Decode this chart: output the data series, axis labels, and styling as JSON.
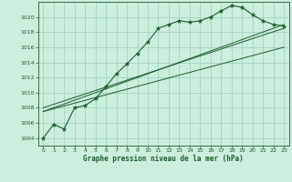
{
  "bg_color": "#cceedd",
  "grid_color": "#99ccbb",
  "line_color": "#1a5c2a",
  "title": "Graphe pression niveau de la mer (hPa)",
  "xlim": [
    -0.5,
    23.5
  ],
  "ylim": [
    1003.0,
    1022.0
  ],
  "yticks": [
    1004,
    1006,
    1008,
    1010,
    1012,
    1014,
    1016,
    1018,
    1020
  ],
  "xticks": [
    0,
    1,
    2,
    3,
    4,
    5,
    6,
    7,
    8,
    9,
    10,
    11,
    12,
    13,
    14,
    15,
    16,
    17,
    18,
    19,
    20,
    21,
    22,
    23
  ],
  "main_x": [
    0,
    1,
    2,
    3,
    4,
    5,
    6,
    7,
    8,
    9,
    10,
    11,
    12,
    13,
    14,
    15,
    16,
    17,
    18,
    19,
    20,
    21,
    22,
    23
  ],
  "main_y": [
    1004.0,
    1005.8,
    1005.2,
    1008.0,
    1008.3,
    1009.2,
    1010.8,
    1012.5,
    1013.8,
    1015.2,
    1016.7,
    1018.5,
    1019.0,
    1019.5,
    1019.3,
    1019.5,
    1020.0,
    1020.8,
    1021.5,
    1021.3,
    1020.3,
    1019.5,
    1019.0,
    1018.8
  ],
  "line1_x": [
    0,
    23
  ],
  "line1_y": [
    1007.5,
    1019.0
  ],
  "line2_x": [
    0,
    23
  ],
  "line2_y": [
    1007.5,
    1016.0
  ],
  "line3_x": [
    0,
    23
  ],
  "line3_y": [
    1008.0,
    1018.5
  ]
}
